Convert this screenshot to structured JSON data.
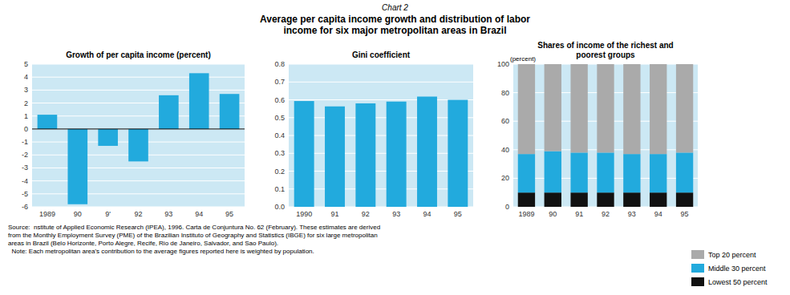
{
  "title": "Chart 2",
  "subtitle": "Average per capita income growth and distribution of labor\nincome for six major metropolitan areas in Brazil",
  "annotations": [
    "Source:  nstitute of Applied Economic Research (IPEA), 1996. Carta de Conjuntura No. 62 (February). These estimates are derived\nfrom the Monthly Employment Survey (PME) of the Brazilian Instituto of Geography and Statistics (IBGE) for six large metropolitan\nareas in Brazil (Belo Horizonte, Porto Alegre, Recife, Rio de Janeiro, Salvador, and Sao Paulo).\n  Note: Each metropolitan area's contribution to the average figures reported here is weighted by population."
  ],
  "chart_data": [
    {
      "type": "bar",
      "title": "Growth of per capita income (percent)",
      "categories": [
        "1989",
        "90",
        "9'",
        "92",
        "93",
        "94",
        "95"
      ],
      "values": [
        1.1,
        -5.8,
        -1.3,
        -2.5,
        2.6,
        4.3,
        2.7
      ],
      "color": "#22aadd",
      "ylim": [
        -6,
        5
      ],
      "yticks": [
        -6,
        -5,
        -4,
        -3,
        -2,
        -1,
        0,
        1,
        2,
        3,
        4,
        5
      ],
      "grid": true
    },
    {
      "type": "bar",
      "title": "Gini coefficient",
      "categories": [
        "1990",
        "91",
        "92",
        "93",
        "94",
        "95"
      ],
      "values": [
        0.593,
        0.563,
        0.58,
        0.59,
        0.618,
        0.6
      ],
      "color": "#22aadd",
      "ylim": [
        0.0,
        0.8
      ],
      "yticks": [
        {
          "value": 0,
          "label": "0.0"
        },
        0.1,
        0.2,
        0.3,
        0.4,
        0.5,
        0.6,
        0.7,
        0.8
      ],
      "grid": true
    },
    {
      "type": "bar",
      "title": "Shares of income of the richest and\npoorest groups",
      "ylabel": "(percent)",
      "categories": [
        "1989",
        "90",
        "91",
        "92",
        "93",
        "94",
        "95"
      ],
      "series": [
        {
          "name": "Lowest 50 percent",
          "color": "#111111",
          "values": [
            10,
            10,
            10,
            10,
            10,
            10,
            10
          ]
        },
        {
          "name": "Middle 30 percent",
          "color": "#22aadd",
          "values": [
            27,
            29,
            28,
            28,
            27,
            27,
            28
          ]
        },
        {
          "name": "Top 20 percent",
          "color": "#aaaaaa",
          "values": [
            63,
            61,
            62,
            62,
            63,
            63,
            62
          ]
        }
      ],
      "stacked": true,
      "ylim": [
        0,
        100
      ],
      "yticks": [
        0,
        20,
        40,
        60,
        80,
        100
      ],
      "grid": true,
      "legend": "lower right"
    }
  ]
}
